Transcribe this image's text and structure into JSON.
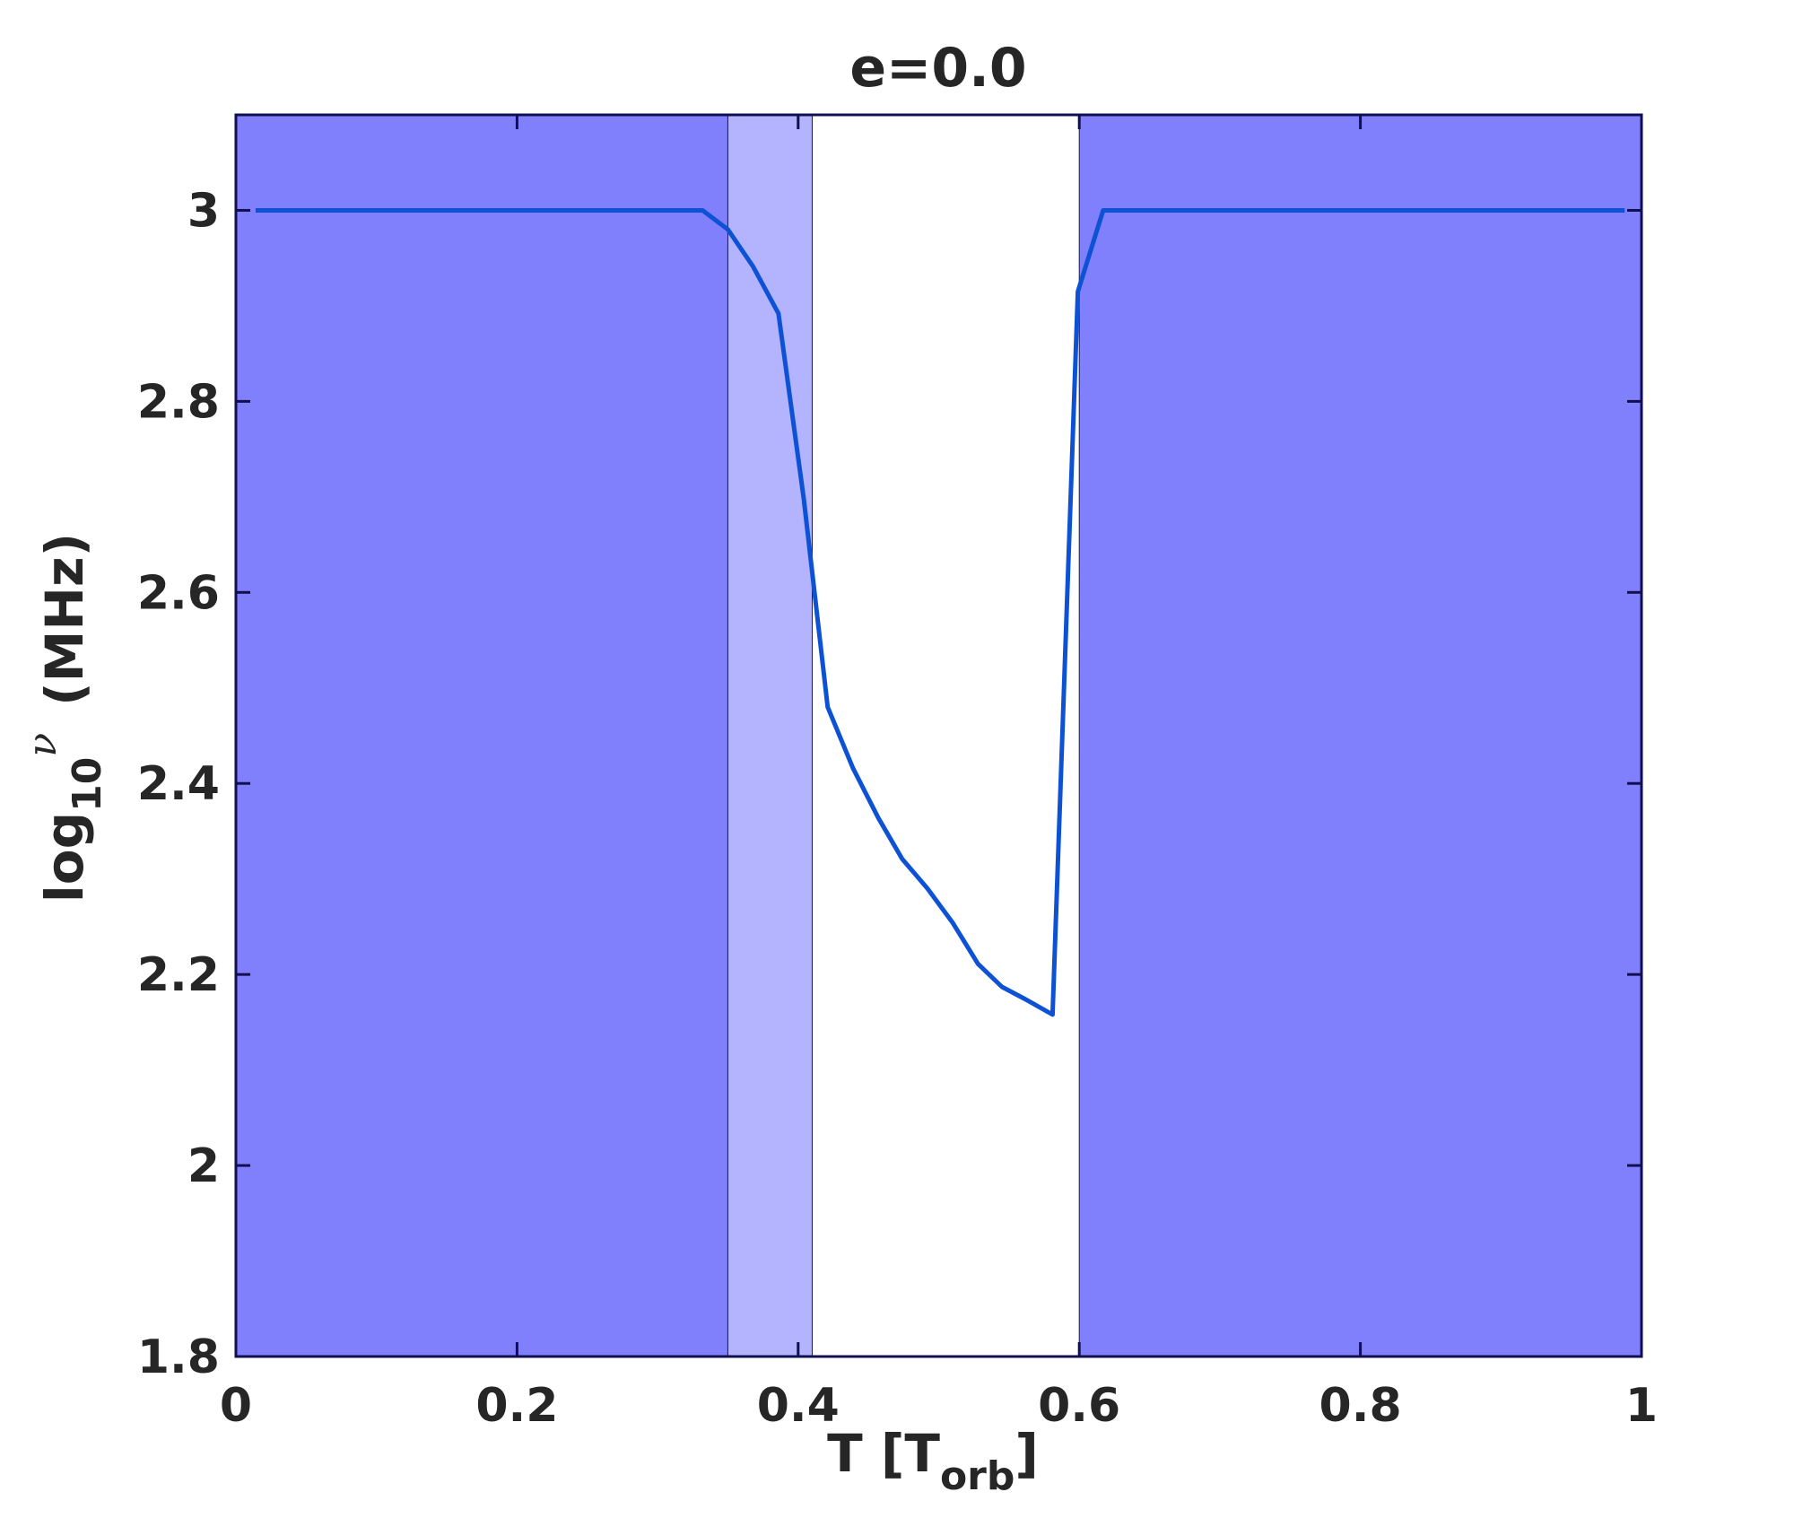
{
  "chart_data": {
    "type": "line",
    "title": "e=0.0",
    "xlabel": {
      "main": "T [T",
      "sub": "orb",
      "end": "]"
    },
    "ylabel": {
      "main": "log",
      "sub": "10",
      "sup": "ν",
      "unit": "(MHz)"
    },
    "xlim": [
      0,
      1
    ],
    "xticks": [
      0,
      0.2,
      0.4,
      0.6,
      0.8,
      1
    ],
    "ylim": [
      1.8,
      3.1
    ],
    "yticks": [
      1.8,
      2,
      2.2,
      2.4,
      2.6,
      2.8,
      3
    ],
    "regions": [
      {
        "xlim": [
          0,
          0.35
        ],
        "color": "#8080fd"
      },
      {
        "xlim": [
          0.35,
          0.41
        ],
        "color": "#b3b3fe"
      },
      {
        "xlim": [
          0.6,
          1
        ],
        "color": "#8080fd"
      }
    ],
    "series": [
      {
        "color": "#0d52d4",
        "x": [
          0.014,
          0.332,
          0.35,
          0.368,
          0.386,
          0.404,
          0.421,
          0.439,
          0.457,
          0.474,
          0.492,
          0.51,
          0.528,
          0.545,
          0.563,
          0.581,
          0.599,
          0.617,
          0.988
        ],
        "values": [
          3.0,
          3.0,
          2.98,
          2.941,
          2.892,
          2.698,
          2.48,
          2.416,
          2.364,
          2.321,
          2.29,
          2.254,
          2.211,
          2.187,
          2.173,
          2.158,
          2.915,
          3.0,
          3.0
        ]
      }
    ]
  }
}
